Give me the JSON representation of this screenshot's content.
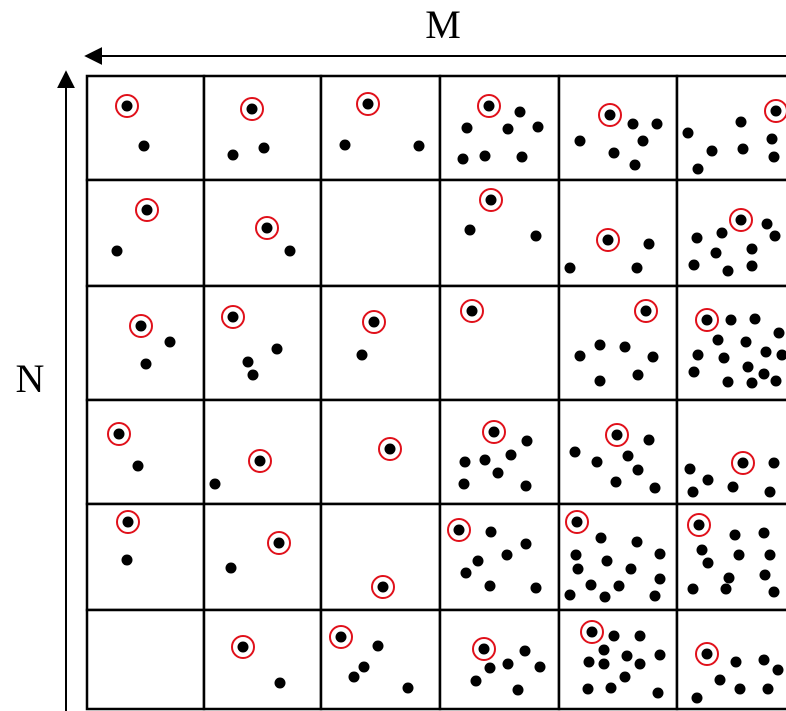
{
  "axes": {
    "horizontal_label": "M",
    "vertical_label": "N"
  },
  "grid": {
    "rows": 6,
    "visible_columns": 6,
    "line_color": "#000000",
    "dot_color": "#000000",
    "highlight_color": "#e0101a"
  }
}
